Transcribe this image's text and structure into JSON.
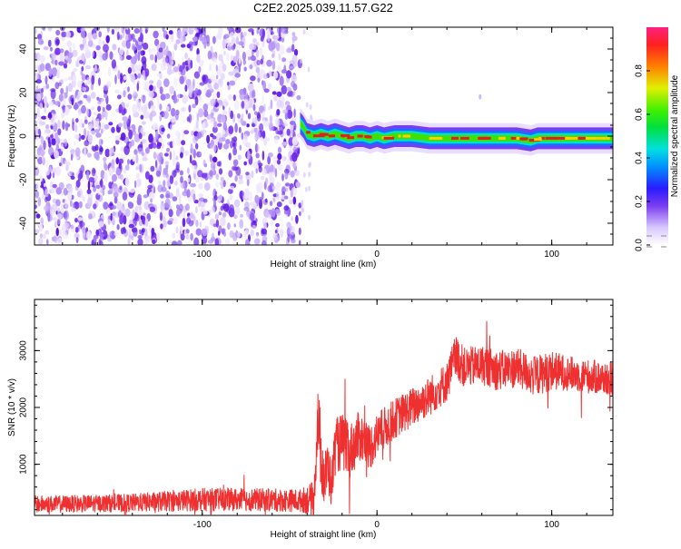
{
  "title": "C2E2.2025.039.11.57.G22",
  "spectrogram": {
    "type": "heatmap",
    "xlabel": "Height of straight line (km)",
    "ylabel": "Frequency (Hz)",
    "xlim": [
      -196,
      135
    ],
    "ylim": [
      -50,
      50
    ],
    "xticks": [
      -100,
      0,
      100
    ],
    "xtick_labels": [
      "-100",
      "0",
      "100"
    ],
    "yticks": [
      -40,
      -20,
      0,
      20,
      40
    ],
    "ytick_labels": [
      "-40",
      "-20",
      "0",
      "20",
      "40"
    ],
    "noise_region": [
      -196,
      -44
    ],
    "signal_line": {
      "x": [
        -44,
        -42,
        -40,
        -36,
        -32,
        -28,
        -24,
        -20,
        -16,
        -12,
        -8,
        -4,
        0,
        4,
        10,
        20,
        30,
        40,
        50,
        60,
        70,
        80,
        88,
        92,
        100,
        110,
        120,
        135
      ],
      "freq": [
        6,
        4,
        1,
        0,
        1,
        0,
        1,
        0,
        -1,
        0,
        0,
        -1,
        0,
        -1,
        0,
        0,
        -1,
        -1,
        -1,
        -1,
        -1,
        -1,
        -2,
        -1,
        -1,
        -1,
        -1,
        -1
      ]
    },
    "colorbar": {
      "label": "Normalized spectral amplitude",
      "range": [
        0,
        1
      ],
      "ticks": [
        0.0,
        0.2,
        0.4,
        0.6,
        0.8
      ],
      "tick_labels": [
        "0.0",
        "0.2",
        "0.4",
        "0.6",
        "0.8"
      ]
    },
    "colors": {
      "noise": "#7a3cf0",
      "signal_core": "#e02020"
    }
  },
  "snr": {
    "type": "line",
    "xlabel": "Height of straight line (km)",
    "ylabel": "SNR (10 * v/v)",
    "xlim": [
      -196,
      135
    ],
    "ylim": [
      100,
      3900
    ],
    "xticks": [
      -100,
      0,
      100
    ],
    "xtick_labels": [
      "-100",
      "0",
      "100"
    ],
    "yticks": [
      1000,
      2000,
      3000
    ],
    "ytick_labels": [
      "1000",
      "2000",
      "3000"
    ],
    "color": "#ef3030",
    "x": [
      -196,
      -180,
      -160,
      -140,
      -120,
      -100,
      -80,
      -60,
      -44,
      -36,
      -34,
      -32,
      -30,
      -28,
      -26,
      -24,
      -20,
      -16,
      -10,
      -4,
      0,
      10,
      20,
      30,
      40,
      45,
      50,
      60,
      70,
      80,
      90,
      100,
      110,
      120,
      135
    ],
    "y": [
      300,
      300,
      310,
      320,
      350,
      380,
      380,
      370,
      360,
      400,
      1800,
      1200,
      700,
      1000,
      600,
      1300,
      1400,
      1200,
      1500,
      1300,
      1500,
      1800,
      2000,
      2200,
      2450,
      2900,
      2700,
      2750,
      2650,
      2700,
      2550,
      2650,
      2600,
      2550,
      2500
    ],
    "noise_amplitude": [
      150,
      150,
      150,
      160,
      180,
      200,
      200,
      200,
      200,
      300,
      600,
      700,
      500,
      500,
      400,
      500,
      500,
      500,
      450,
      400,
      400,
      350,
      350,
      350,
      350,
      400,
      350,
      350,
      350,
      350,
      350,
      350,
      300,
      300,
      300
    ]
  }
}
